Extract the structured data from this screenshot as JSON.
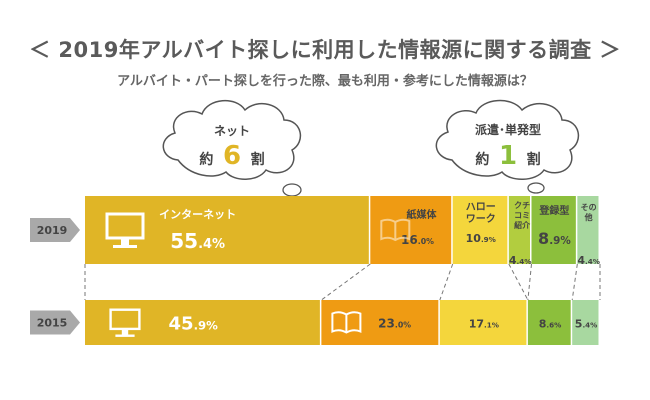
{
  "title": "＜ 2019年アルバイト探しに利用した情報源に関する調査 ＞",
  "subtitle": "アルバイト・パート探しを行った際、最も利用・参考にした情報源は？",
  "callouts": [
    {
      "line1": "ネット",
      "prefix": "約",
      "number": "6",
      "suffix": "割"
    },
    {
      "line1": "派遣･単発型",
      "prefix": "約",
      "number": "1",
      "suffix": "割"
    }
  ],
  "chart_data": {
    "type": "bar",
    "orientation": "horizontal-stacked-100",
    "categories": [
      "インターネット",
      "紙媒体",
      "ハローワーク",
      "クチコミ紹介",
      "登録型",
      "その他"
    ],
    "colors": [
      "#e0b526",
      "#ef9b13",
      "#f4d63c",
      "#b2cd3f",
      "#8cbf3c",
      "#a8d8a0"
    ],
    "series": [
      {
        "name": "2019",
        "values": [
          55.4,
          16.0,
          10.9,
          4.4,
          8.9,
          4.4
        ]
      },
      {
        "name": "2015",
        "values": [
          45.9,
          23.0,
          17.1,
          0,
          8.6,
          5.4
        ]
      }
    ],
    "value_suffix": "%"
  }
}
